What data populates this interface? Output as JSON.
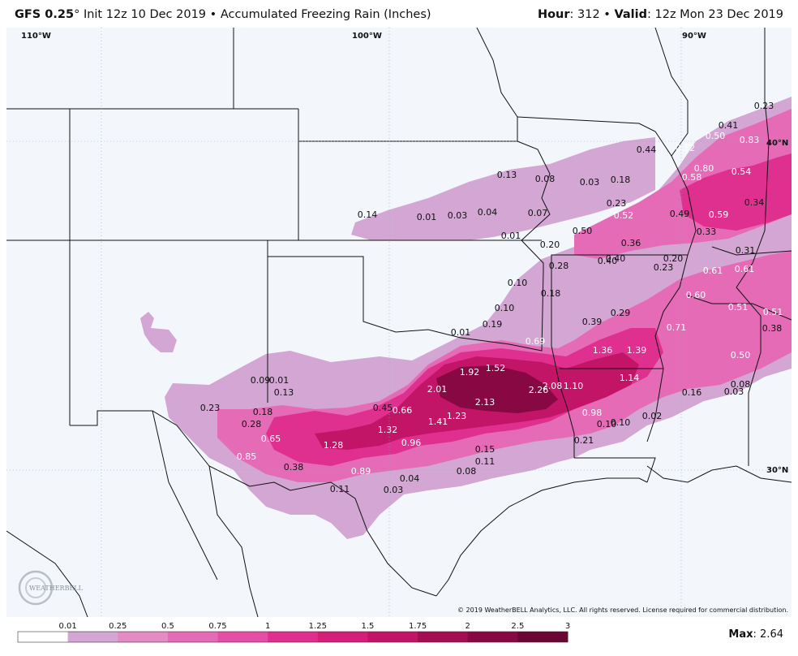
{
  "header": {
    "model": "GFS 0.25",
    "degree": "°",
    "init": "Init 12z 10 Dec 2019",
    "bullet": "•",
    "product": "Accumulated Freezing Rain (Inches)",
    "hour_label": "Hour",
    "hour_value": ": 312",
    "valid_label": "Valid",
    "valid_value": ": 12z Mon 23 Dec 2019"
  },
  "geo_labels": {
    "lon110": "110°W",
    "lon100": "100°W",
    "lon90": "90°W",
    "lat40": "40°N",
    "lat30": "30°N"
  },
  "values": [
    {
      "t": "0.23",
      "c": "dark"
    },
    {
      "t": "0.41",
      "c": "dark"
    },
    {
      "t": "0.50",
      "c": "light"
    },
    {
      "t": "0.83",
      "c": "light"
    },
    {
      "t": "0.44",
      "c": "dark"
    },
    {
      "t": "0.52",
      "c": "light"
    },
    {
      "t": "0.80",
      "c": "light"
    },
    {
      "t": "0.54",
      "c": "light"
    },
    {
      "t": "0.58",
      "c": "light"
    },
    {
      "t": "0.13",
      "c": "dark"
    },
    {
      "t": "0.08",
      "c": "dark"
    },
    {
      "t": "0.03",
      "c": "dark"
    },
    {
      "t": "0.18",
      "c": "dark"
    },
    {
      "t": "0.23",
      "c": "dark"
    },
    {
      "t": "0.34",
      "c": "dark"
    },
    {
      "t": "0.14",
      "c": "dark"
    },
    {
      "t": "0.01",
      "c": "dark"
    },
    {
      "t": "0.03",
      "c": "dark"
    },
    {
      "t": "0.04",
      "c": "dark"
    },
    {
      "t": "0.07",
      "c": "dark"
    },
    {
      "t": "0.52",
      "c": "light"
    },
    {
      "t": "0.49",
      "c": "dark"
    },
    {
      "t": "0.59",
      "c": "light"
    },
    {
      "t": "0.50",
      "c": "dark"
    },
    {
      "t": "0.33",
      "c": "dark"
    },
    {
      "t": "0.01",
      "c": "dark"
    },
    {
      "t": "0.20",
      "c": "dark"
    },
    {
      "t": "0.36",
      "c": "dark"
    },
    {
      "t": "0.20",
      "c": "dark"
    },
    {
      "t": "0.31",
      "c": "dark"
    },
    {
      "t": "0.28",
      "c": "dark"
    },
    {
      "t": "0.40",
      "c": "dark"
    },
    {
      "t": "0.40",
      "c": "dark"
    },
    {
      "t": "0.23",
      "c": "dark"
    },
    {
      "t": "0.61",
      "c": "light"
    },
    {
      "t": "0.61",
      "c": "light"
    },
    {
      "t": "0.10",
      "c": "dark"
    },
    {
      "t": "0.18",
      "c": "dark"
    },
    {
      "t": "0.60",
      "c": "light"
    },
    {
      "t": "0.10",
      "c": "dark"
    },
    {
      "t": "0.29",
      "c": "dark"
    },
    {
      "t": "0.51",
      "c": "light"
    },
    {
      "t": "0.51",
      "c": "light"
    },
    {
      "t": "0.19",
      "c": "dark"
    },
    {
      "t": "0.39",
      "c": "dark"
    },
    {
      "t": "0.71",
      "c": "light"
    },
    {
      "t": "0.38",
      "c": "dark"
    },
    {
      "t": "0.01",
      "c": "dark"
    },
    {
      "t": "0.69",
      "c": "light"
    },
    {
      "t": "1.36",
      "c": "light"
    },
    {
      "t": "1.39",
      "c": "light"
    },
    {
      "t": "0.50",
      "c": "light"
    },
    {
      "t": "1.92",
      "c": "light"
    },
    {
      "t": "1.52",
      "c": "light"
    },
    {
      "t": "0.09",
      "c": "dark"
    },
    {
      "t": "0.01",
      "c": "dark"
    },
    {
      "t": "2.01",
      "c": "light"
    },
    {
      "t": "2.08",
      "c": "light"
    },
    {
      "t": "1.10",
      "c": "light"
    },
    {
      "t": "1.14",
      "c": "light"
    },
    {
      "t": "0.08",
      "c": "dark"
    },
    {
      "t": "0.13",
      "c": "dark"
    },
    {
      "t": "2.26",
      "c": "light"
    },
    {
      "t": "0.16",
      "c": "dark"
    },
    {
      "t": "0.03",
      "c": "dark"
    },
    {
      "t": "2.13",
      "c": "light"
    },
    {
      "t": "0.23",
      "c": "dark"
    },
    {
      "t": "0.45",
      "c": "dark"
    },
    {
      "t": "0.66",
      "c": "light"
    },
    {
      "t": "0.18",
      "c": "dark"
    },
    {
      "t": "0.98",
      "c": "light"
    },
    {
      "t": "0.02",
      "c": "dark"
    },
    {
      "t": "1.23",
      "c": "light"
    },
    {
      "t": "1.41",
      "c": "light"
    },
    {
      "t": "0.28",
      "c": "dark"
    },
    {
      "t": "0.10",
      "c": "dark"
    },
    {
      "t": "0.10",
      "c": "dark"
    },
    {
      "t": "1.32",
      "c": "light"
    },
    {
      "t": "0.65",
      "c": "light"
    },
    {
      "t": "0.21",
      "c": "dark"
    },
    {
      "t": "1.28",
      "c": "light"
    },
    {
      "t": "0.96",
      "c": "light"
    },
    {
      "t": "0.15",
      "c": "dark"
    },
    {
      "t": "0.85",
      "c": "light"
    },
    {
      "t": "0.11",
      "c": "dark"
    },
    {
      "t": "0.38",
      "c": "dark"
    },
    {
      "t": "0.89",
      "c": "light"
    },
    {
      "t": "0.08",
      "c": "dark"
    },
    {
      "t": "0.04",
      "c": "dark"
    },
    {
      "t": "0.11",
      "c": "dark"
    },
    {
      "t": "0.03",
      "c": "dark"
    }
  ],
  "copyright": "© 2019 WeatherBELL Analytics, LLC. All rights reserved. License required for commercial distribution.",
  "colorbar": {
    "ticks": [
      "0.01",
      "0.25",
      "0.5",
      "0.75",
      "1",
      "1.25",
      "1.5",
      "1.75",
      "2",
      "2.5",
      "3"
    ],
    "colors": [
      "#ffffff",
      "#d3a6d3",
      "#e48ac4",
      "#e56bb6",
      "#e64ea6",
      "#e0308f",
      "#d41f7a",
      "#c21567",
      "#a50d52",
      "#870843",
      "#6a0534"
    ]
  },
  "max_label": "Max",
  "max_value": ": 2.64",
  "logo_text": "WEATHERBELL",
  "colors": {
    "map_bg": "#f3f7fc",
    "border": "#111111",
    "light_pink": "#d3a6d3",
    "mid_pink": "#e56bb6",
    "hot_pink": "#e0308f",
    "crimson": "#c21567",
    "maroon": "#870843"
  }
}
